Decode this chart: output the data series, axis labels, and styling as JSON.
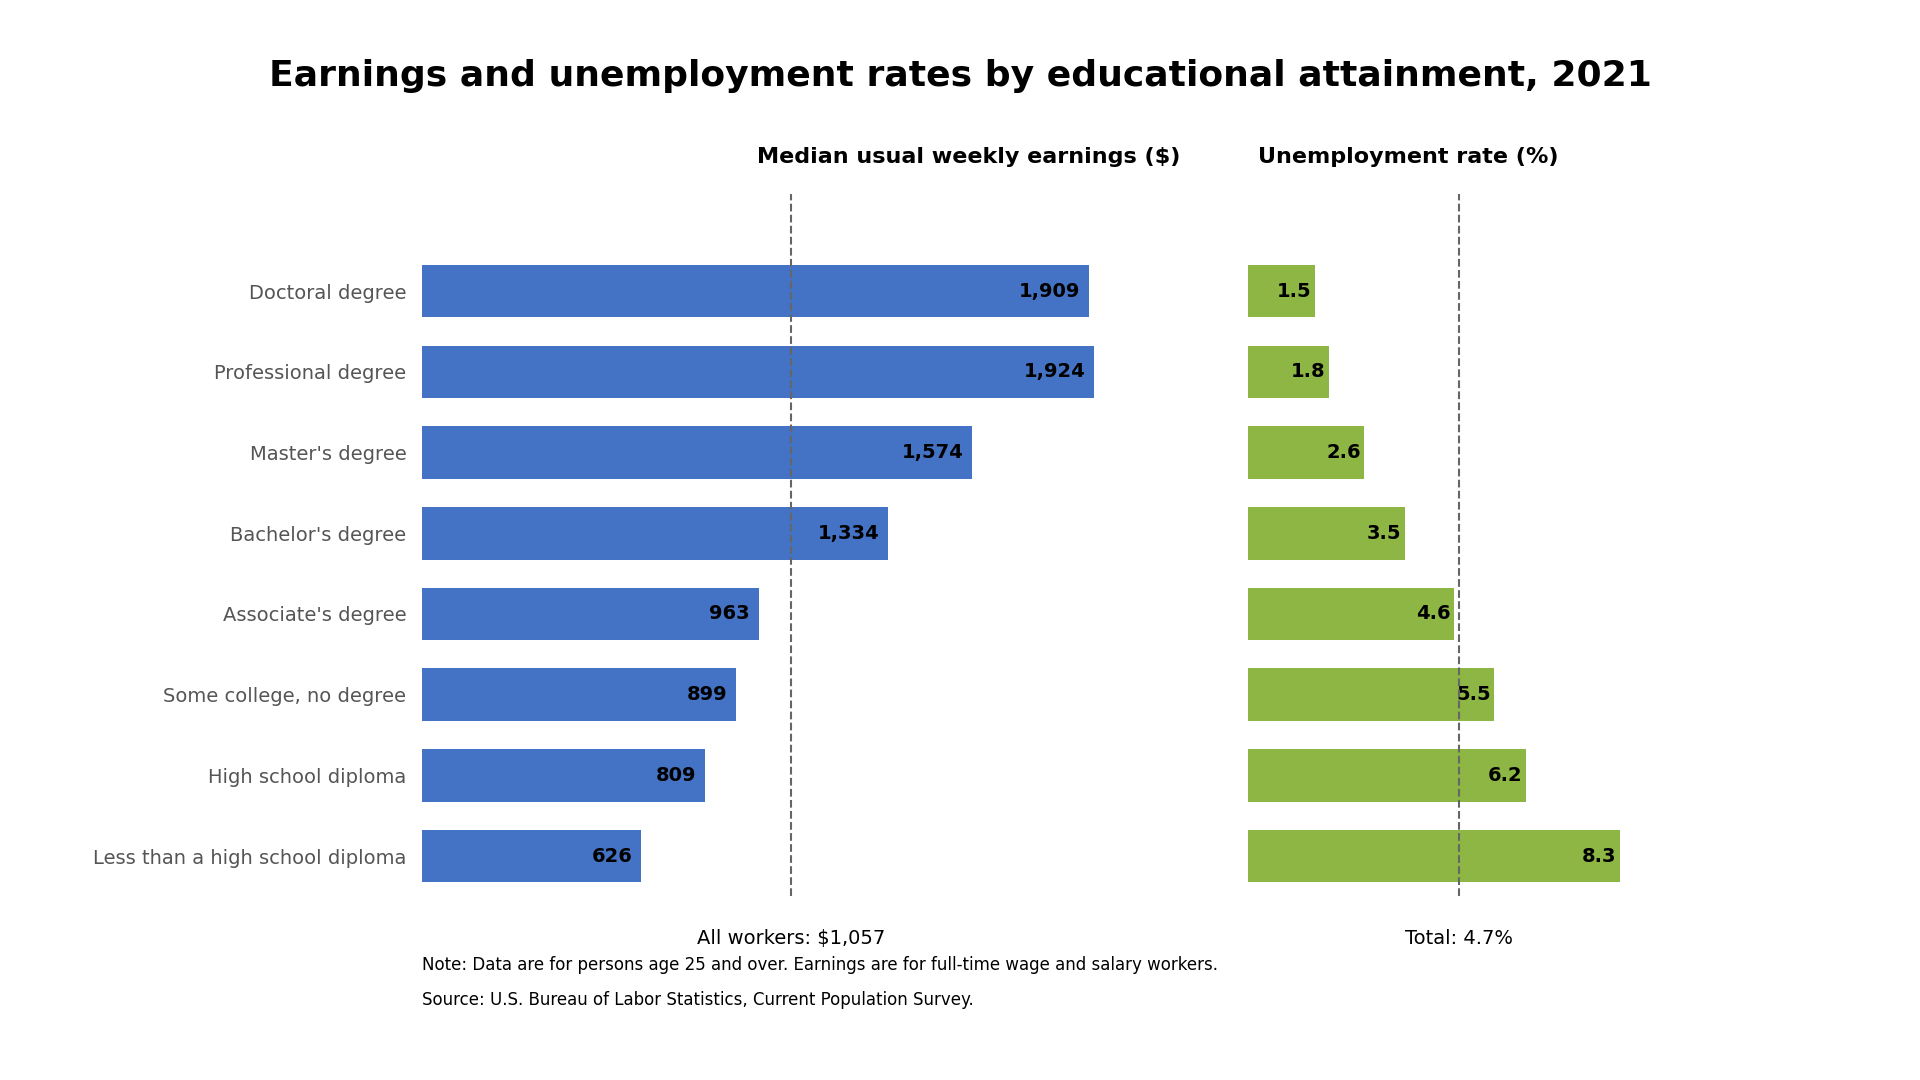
{
  "title": "Earnings and unemployment rates by educational attainment, 2021",
  "categories": [
    "Doctoral degree",
    "Professional degree",
    "Master's degree",
    "Bachelor's degree",
    "Associate's degree",
    "Some college, no degree",
    "High school diploma",
    "Less than a high school diploma"
  ],
  "earnings": [
    1909,
    1924,
    1574,
    1334,
    963,
    899,
    809,
    626
  ],
  "unemployment": [
    1.5,
    1.8,
    2.6,
    3.5,
    4.6,
    5.5,
    6.2,
    8.3
  ],
  "earnings_color": "#4472C4",
  "unemployment_color": "#8DB645",
  "earnings_label": "Median usual weekly earnings ($)",
  "unemployment_label": "Unemployment rate (%)",
  "all_workers_earnings": 1057,
  "all_workers_label": "All workers: $1,057",
  "total_unemployment": 4.7,
  "total_label": "Total: 4.7%",
  "note_line1": "Note: Data are for persons age 25 and over. Earnings are for full-time wage and salary workers.",
  "note_line2": "Source: U.S. Bureau of Labor Statistics, Current Population Survey.",
  "background_color": "#FFFFFF",
  "title_fontsize": 26,
  "header_fontsize": 16,
  "tick_fontsize": 14,
  "bar_label_fontsize": 14,
  "note_fontsize": 12,
  "footer_fontsize": 14
}
